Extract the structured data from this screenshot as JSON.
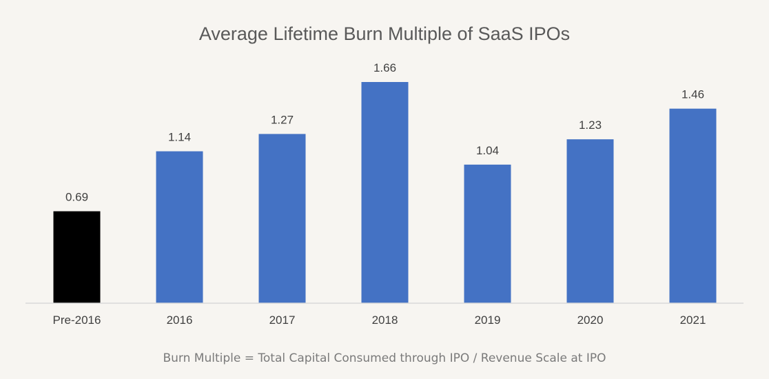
{
  "chart_data": {
    "type": "bar",
    "title": "Average Lifetime Burn Multiple of SaaS IPOs",
    "categories": [
      "Pre-2016",
      "2016",
      "2017",
      "2018",
      "2019",
      "2020",
      "2021"
    ],
    "values": [
      0.69,
      1.14,
      1.27,
      1.66,
      1.04,
      1.23,
      1.46
    ],
    "data_labels": [
      "0.69",
      "1.14",
      "1.27",
      "1.66",
      "1.04",
      "1.23",
      "1.46"
    ],
    "bar_colors": [
      "#000000",
      "#4472c4",
      "#4472c4",
      "#4472c4",
      "#4472c4",
      "#4472c4",
      "#4472c4"
    ],
    "xlabel": "",
    "ylabel": "",
    "ylim": [
      0,
      1.66
    ],
    "grid": false,
    "legend": "none",
    "footnote": "Burn Multiple = Total Capital Consumed through IPO / Revenue Scale at IPO"
  },
  "colors": {
    "background": "#f7f5f1",
    "axis": "#d9d9d9",
    "accent": "#4472c4",
    "highlight": "#000000"
  }
}
